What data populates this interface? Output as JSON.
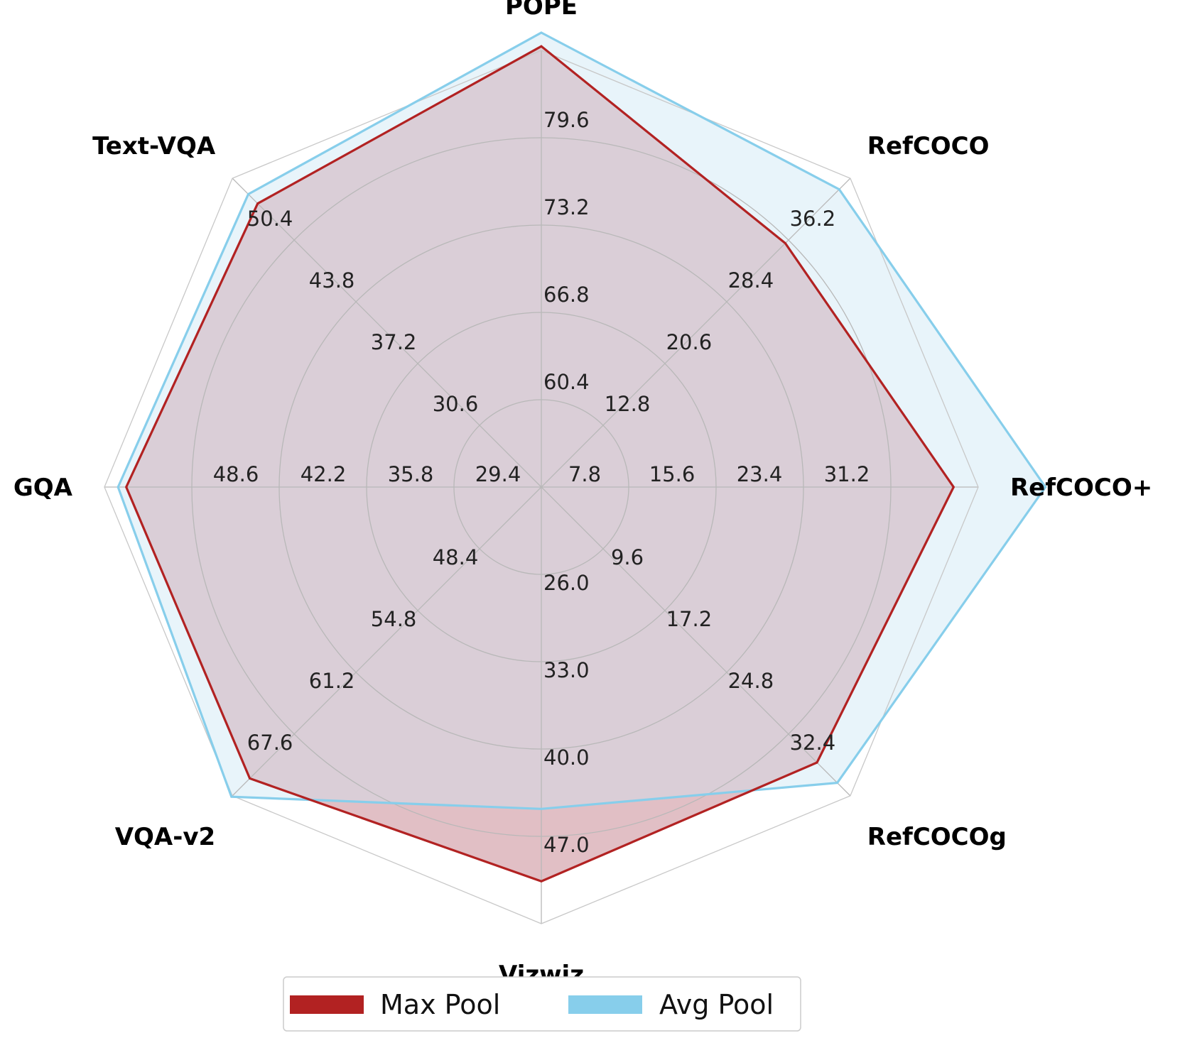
{
  "chart_data": {
    "type": "radar",
    "axes": [
      "POPE",
      "RefCOCO",
      "RefCOCO+",
      "RefCOCOg",
      "Vizwiz",
      "VQA-v2",
      "GQA",
      "Text-VQA"
    ],
    "axis_ticks": [
      [
        "60.4",
        "66.8",
        "73.2",
        "79.6"
      ],
      [
        "12.8",
        "20.6",
        "28.4",
        "36.2"
      ],
      [
        "7.8",
        "15.6",
        "23.4",
        "31.2"
      ],
      [
        "9.6",
        "17.2",
        "24.8",
        "32.4"
      ],
      [
        "26.0",
        "33.0",
        "40.0",
        "47.0"
      ],
      [
        "48.4",
        "54.8",
        "61.2",
        "67.6"
      ],
      [
        "29.4",
        "35.8",
        "42.2",
        "48.6"
      ],
      [
        "30.6",
        "37.2",
        "43.8",
        "50.4"
      ]
    ],
    "series": [
      {
        "name": "Max Pool",
        "color": "#b22222",
        "fill": "#f2caca",
        "values": [
          86.3,
          35.8,
          36.8,
          35.9,
          50.6,
          72.2,
          53.4,
          54.3
        ]
      },
      {
        "name": "Avg Pool",
        "color": "#87ceeb",
        "fill": "#e4f2f9",
        "values": [
          87.3,
          42.6,
          45.0,
          38.4,
          44.8,
          74.1,
          54.0,
          55.3
        ]
      }
    ],
    "grid": true,
    "legend_position": "bottom"
  }
}
